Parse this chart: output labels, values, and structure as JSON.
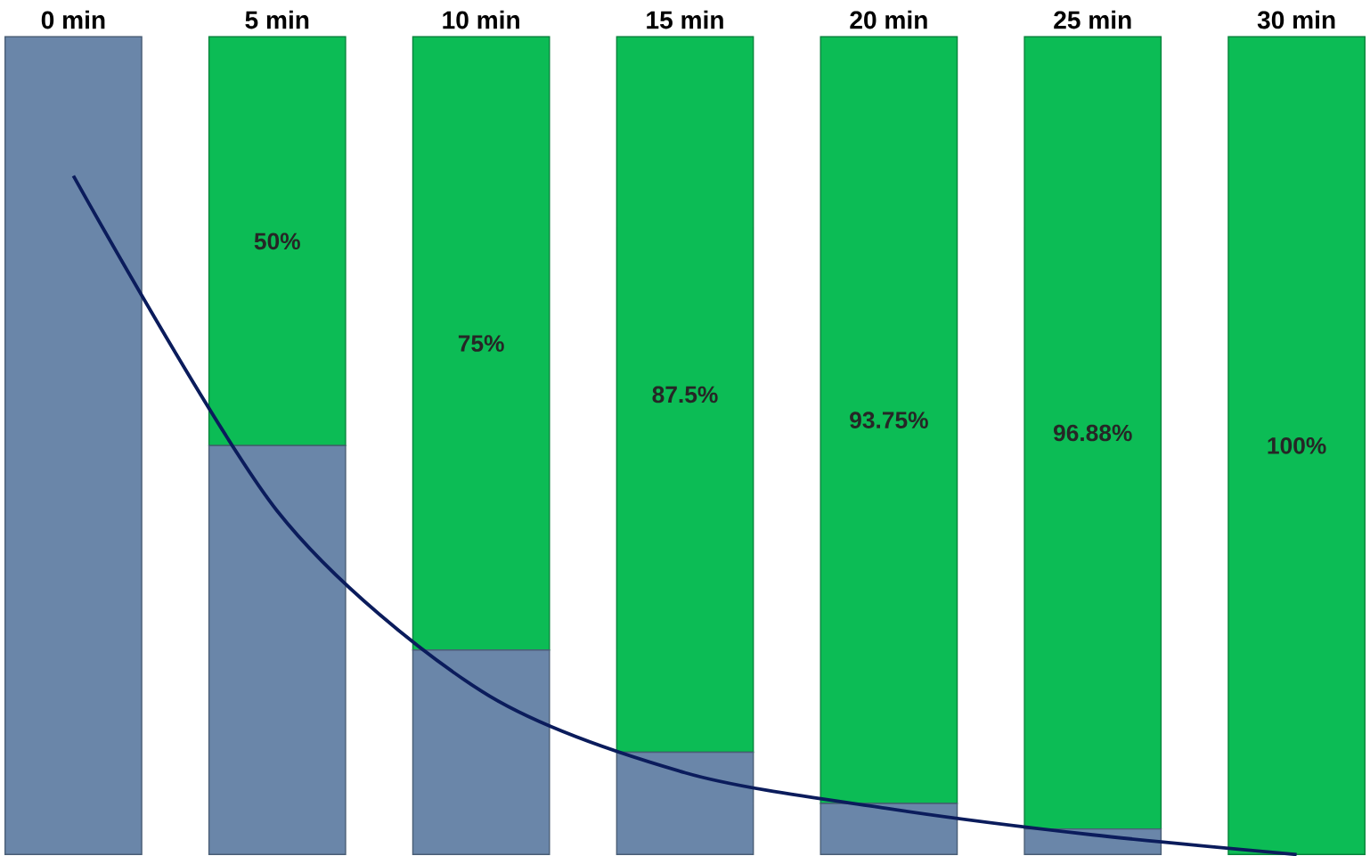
{
  "chart_data": {
    "type": "bar",
    "stacked": true,
    "categories": [
      "0 min",
      "5 min",
      "10 min",
      "15 min",
      "20 min",
      "25 min",
      "30 min"
    ],
    "series": [
      {
        "color": "#6a86a9",
        "values": [
          100,
          50,
          25,
          12.5,
          6.25,
          3.12,
          0
        ]
      },
      {
        "color": "#0cbc55",
        "values": [
          0,
          50,
          75,
          87.5,
          93.75,
          96.88,
          100
        ],
        "value_labels": [
          null,
          "50%",
          "75%",
          "87.5%",
          "93.75%",
          "96.88%",
          "100%"
        ]
      },
      {
        "type": "line",
        "color": "#0b1c5c",
        "values": [
          83,
          42,
          20,
          10,
          5.6,
          2.4,
          0
        ]
      }
    ]
  }
}
